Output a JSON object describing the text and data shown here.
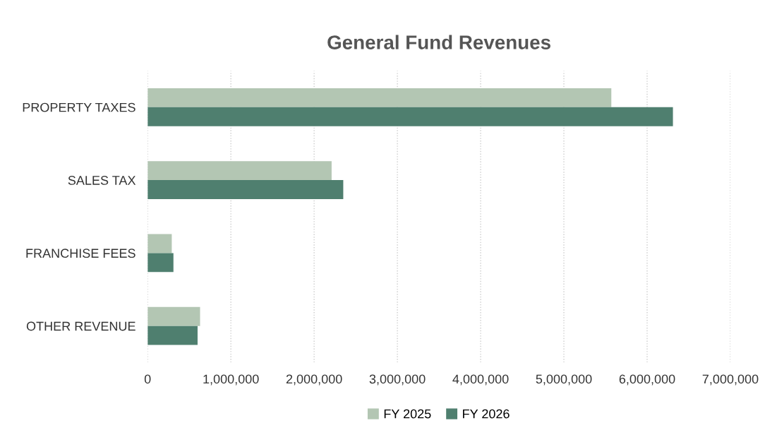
{
  "chart_data": {
    "type": "bar",
    "orientation": "horizontal",
    "title": "General Fund Revenues",
    "categories": [
      "PROPERTY TAXES",
      "SALES TAX",
      "FRANCHISE FEES",
      "OTHER REVENUE"
    ],
    "series": [
      {
        "name": "FY 2025",
        "color": "#b3c6b3",
        "values": [
          5570000,
          2210000,
          290000,
          630000
        ]
      },
      {
        "name": "FY 2026",
        "color": "#4f7f6f",
        "values": [
          6310000,
          2350000,
          310000,
          600000
        ]
      }
    ],
    "xlim": [
      0,
      7000000
    ],
    "xticks": [
      0,
      {
        "value": 1000000,
        "label": "1,000,000"
      },
      {
        "value": 2000000,
        "label": "2,000,000"
      },
      {
        "value": 3000000,
        "label": "3,000,000"
      },
      {
        "value": 4000000,
        "label": "4,000,000"
      },
      {
        "value": 5000000,
        "label": "5,000,000"
      },
      {
        "value": 6000000,
        "label": "6,000,000"
      },
      {
        "value": 7000000,
        "label": "7,000,000"
      }
    ],
    "grid": "x",
    "legend": "bottom"
  }
}
